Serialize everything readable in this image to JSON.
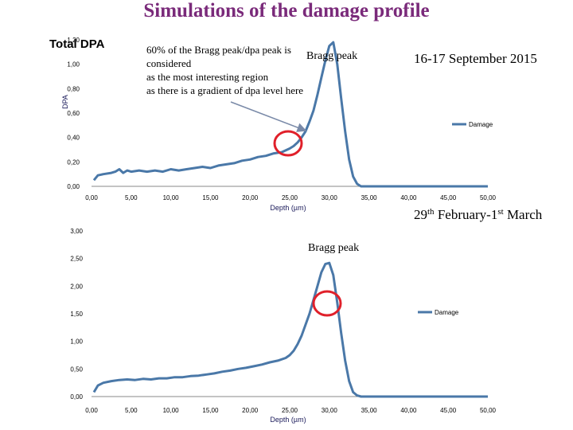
{
  "title": "Simulations of the damage profile",
  "annotations": {
    "total_dpa": "Total DPA",
    "note_lines": [
      "60% of the Bragg peak/dpa peak is",
      "considered",
      "as the most interesting region",
      "as there is a gradient of dpa level here"
    ],
    "bragg_peak_top": "Bragg peak",
    "bragg_peak_bottom": "Bragg peak",
    "date_top": "16-17 September 2015",
    "date_bottom_main": "29",
    "date_bottom_sup": "th",
    "date_bottom_rest": " February-1",
    "date_bottom_sup2": "st",
    "date_bottom_end": " March"
  },
  "colors": {
    "series": "#4a78a8",
    "circle": "#e0202a",
    "arrow": "#7a8aa8",
    "title": "#7a2a7a"
  },
  "chart_data": [
    {
      "type": "line",
      "xlabel": "Depth (µm)",
      "ylabel": "DPA",
      "xlim": [
        0,
        50
      ],
      "ylim": [
        0,
        1.2
      ],
      "xticks": [
        "0,00",
        "5,00",
        "10,00",
        "15,00",
        "20,00",
        "25,00",
        "30,00",
        "35,00",
        "40,00",
        "45,00",
        "50,00"
      ],
      "yticks": [
        "0,00",
        "0,20",
        "0,40",
        "0,60",
        "0,80",
        "1,00",
        "1,20"
      ],
      "legend": "top-right",
      "series": [
        {
          "name": "Damage",
          "x": [
            0.3,
            0.8,
            1.5,
            2.5,
            3.0,
            3.5,
            4.0,
            4.5,
            5.0,
            6.0,
            7.0,
            8.0,
            9.0,
            10.0,
            11.0,
            12.0,
            13.0,
            14.0,
            15.0,
            16.0,
            17.0,
            18.0,
            19.0,
            20.0,
            21.0,
            22.0,
            23.0,
            24.0,
            25.0,
            25.5,
            26.0,
            26.5,
            27.0,
            27.5,
            28.0,
            28.5,
            29.0,
            29.5,
            30.0,
            30.5,
            31.0,
            31.5,
            32.0,
            32.5,
            33.0,
            33.5,
            34.0,
            35.0,
            40.0,
            45.0,
            50.0
          ],
          "y": [
            0.05,
            0.09,
            0.1,
            0.11,
            0.12,
            0.14,
            0.11,
            0.13,
            0.12,
            0.13,
            0.12,
            0.13,
            0.12,
            0.14,
            0.13,
            0.14,
            0.15,
            0.16,
            0.15,
            0.17,
            0.18,
            0.19,
            0.21,
            0.22,
            0.24,
            0.25,
            0.27,
            0.28,
            0.31,
            0.33,
            0.36,
            0.4,
            0.45,
            0.53,
            0.62,
            0.75,
            0.89,
            1.03,
            1.15,
            1.18,
            1.0,
            0.72,
            0.45,
            0.22,
            0.08,
            0.02,
            0.0,
            0.0,
            0.0,
            0.0,
            0.0
          ]
        }
      ]
    },
    {
      "type": "line",
      "xlabel": "Depth (µm)",
      "ylabel": "",
      "xlim": [
        0,
        50
      ],
      "ylim": [
        0,
        3.0
      ],
      "xticks": [
        "0,00",
        "5,00",
        "10,00",
        "15,00",
        "20,00",
        "25,00",
        "30,00",
        "35,00",
        "40,00",
        "45,00",
        "50,00"
      ],
      "yticks": [
        "0,00",
        "0,50",
        "1,00",
        "1,50",
        "2,00",
        "2,50",
        "3,00"
      ],
      "legend": "right",
      "series": [
        {
          "name": "Damage",
          "x": [
            0.3,
            0.8,
            1.5,
            2.5,
            3.5,
            4.5,
            5.5,
            6.5,
            7.5,
            8.5,
            9.5,
            10.5,
            11.5,
            12.5,
            13.5,
            14.5,
            15.5,
            16.5,
            17.5,
            18.5,
            19.5,
            20.5,
            21.5,
            22.5,
            23.5,
            24.5,
            25.0,
            25.5,
            26.0,
            26.5,
            27.0,
            27.5,
            28.0,
            28.5,
            29.0,
            29.5,
            30.0,
            30.5,
            31.0,
            31.5,
            32.0,
            32.5,
            33.0,
            33.5,
            34.0,
            35.0,
            40.0,
            45.0,
            50.0
          ],
          "y": [
            0.08,
            0.2,
            0.25,
            0.28,
            0.3,
            0.31,
            0.3,
            0.32,
            0.31,
            0.33,
            0.33,
            0.35,
            0.35,
            0.37,
            0.38,
            0.4,
            0.42,
            0.45,
            0.47,
            0.5,
            0.52,
            0.55,
            0.58,
            0.62,
            0.65,
            0.7,
            0.75,
            0.83,
            0.95,
            1.1,
            1.3,
            1.5,
            1.75,
            2.0,
            2.25,
            2.4,
            2.42,
            2.2,
            1.7,
            1.15,
            0.65,
            0.28,
            0.08,
            0.02,
            0.0,
            0.0,
            0.0,
            0.0,
            0.0
          ]
        }
      ]
    }
  ]
}
